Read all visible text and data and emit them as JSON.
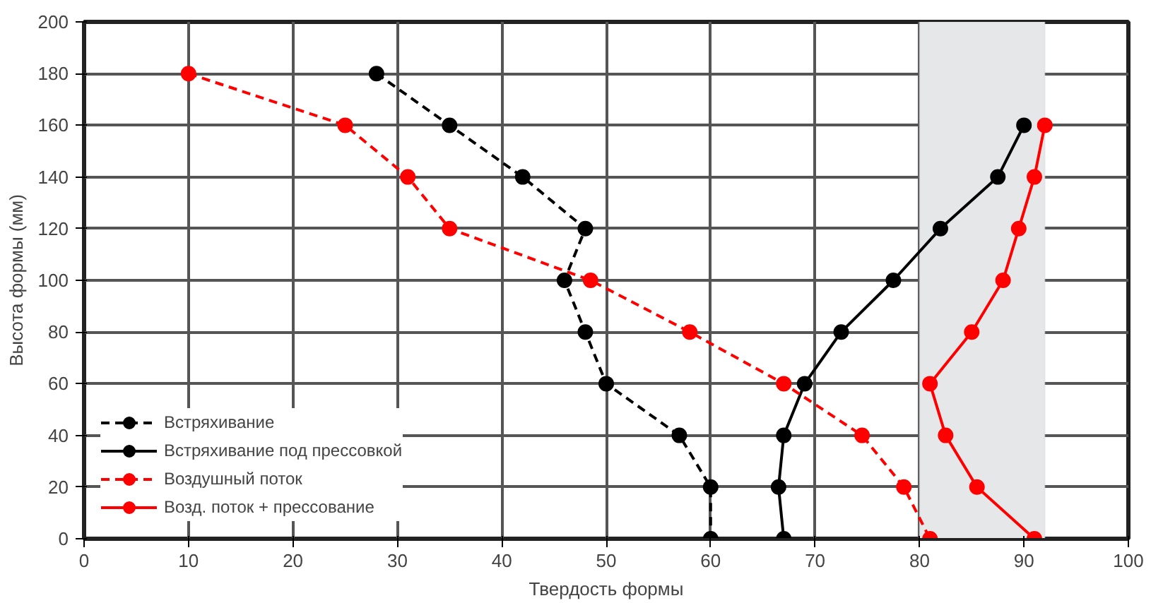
{
  "chart_data": {
    "type": "line",
    "xlabel": "Твердость формы",
    "ylabel": "Высота формы (мм)",
    "xlim": [
      0,
      100
    ],
    "ylim": [
      0,
      200
    ],
    "xticks": [
      0,
      10,
      20,
      30,
      40,
      50,
      60,
      70,
      80,
      90,
      100
    ],
    "yticks": [
      0,
      20,
      40,
      60,
      80,
      100,
      120,
      140,
      160,
      180,
      200
    ],
    "grid": true,
    "legend": "bottom left",
    "marker": "circle",
    "bands": [
      {
        "axis": "x",
        "from": 80,
        "to": 92,
        "color": "#e6e7e9"
      }
    ],
    "series": [
      {
        "name": "Встряхивание",
        "color": "#000000",
        "line_style": "dashed",
        "x": [
          28,
          35,
          42,
          48,
          46,
          48,
          50,
          57,
          60,
          60
        ],
        "values": [
          180,
          160,
          140,
          120,
          100,
          80,
          60,
          40,
          20,
          0
        ]
      },
      {
        "name": "Встряхивание под прессовкой",
        "color": "#000000",
        "line_style": "solid",
        "x": [
          90,
          87.5,
          82,
          77.5,
          72.5,
          69,
          67,
          66.5,
          67
        ],
        "values": [
          160,
          140,
          120,
          100,
          80,
          60,
          40,
          20,
          0
        ]
      },
      {
        "name": "Воздушный поток",
        "color": "#ff0000",
        "line_style": "dashed",
        "x": [
          10,
          25,
          31,
          35,
          48.5,
          58,
          67,
          74.5,
          78.5,
          81
        ],
        "values": [
          180,
          160,
          140,
          120,
          100,
          80,
          60,
          40,
          20,
          0
        ]
      },
      {
        "name": "Возд. поток + прессование",
        "color": "#ff0000",
        "line_style": "solid",
        "x": [
          92,
          91,
          89.5,
          88,
          85,
          81,
          82.5,
          85.5,
          91
        ],
        "values": [
          160,
          140,
          120,
          100,
          80,
          60,
          40,
          20,
          0
        ]
      }
    ]
  }
}
